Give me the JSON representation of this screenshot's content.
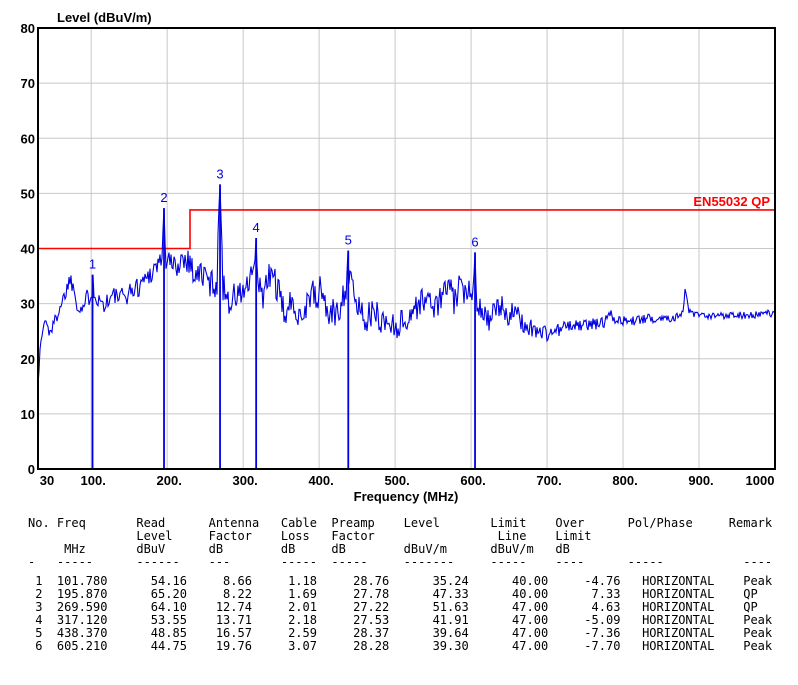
{
  "chart_data": {
    "type": "line",
    "title": "",
    "xlabel": "Frequency (MHz)",
    "ylabel": "Level (dBuV/m)",
    "xlim": [
      30,
      1000
    ],
    "ylim": [
      0,
      80
    ],
    "grid": true,
    "grid_color": "#c8c8c8",
    "trace_color": "#0000e0",
    "x_ticks": [
      {
        "value": 30,
        "label": "30"
      },
      {
        "value": 100,
        "label": "100."
      },
      {
        "value": 200,
        "label": "200."
      },
      {
        "value": 300,
        "label": "300."
      },
      {
        "value": 400,
        "label": "400."
      },
      {
        "value": 500,
        "label": "500."
      },
      {
        "value": 600,
        "label": "600."
      },
      {
        "value": 700,
        "label": "700."
      },
      {
        "value": 800,
        "label": "800."
      },
      {
        "value": 900,
        "label": "900."
      },
      {
        "value": 1000,
        "label": "1000"
      }
    ],
    "y_ticks": [
      {
        "value": 0,
        "label": "0"
      },
      {
        "value": 10,
        "label": "10"
      },
      {
        "value": 20,
        "label": "20"
      },
      {
        "value": 30,
        "label": "30"
      },
      {
        "value": 40,
        "label": "40"
      },
      {
        "value": 50,
        "label": "50"
      },
      {
        "value": 60,
        "label": "60"
      },
      {
        "value": 70,
        "label": "70"
      },
      {
        "value": 80,
        "label": "80"
      }
    ],
    "limit_line": {
      "label": "EN55032 QP",
      "color": "#ff0000",
      "points": [
        [
          30,
          40
        ],
        [
          230,
          40
        ],
        [
          230,
          47
        ],
        [
          1000,
          47
        ]
      ]
    },
    "markers": [
      {
        "no": "1",
        "freq_mhz": 101.78,
        "level_dbuvm": 35.24
      },
      {
        "no": "2",
        "freq_mhz": 195.87,
        "level_dbuvm": 47.33
      },
      {
        "no": "3",
        "freq_mhz": 269.59,
        "level_dbuvm": 51.63
      },
      {
        "no": "4",
        "freq_mhz": 317.12,
        "level_dbuvm": 41.91
      },
      {
        "no": "5",
        "freq_mhz": 438.37,
        "level_dbuvm": 39.64
      },
      {
        "no": "6",
        "freq_mhz": 605.21,
        "level_dbuvm": 39.3
      }
    ],
    "trace_envelope_points": [
      [
        30,
        16
      ],
      [
        32,
        20
      ],
      [
        34,
        23
      ],
      [
        37,
        26
      ],
      [
        40,
        27
      ],
      [
        44,
        25
      ],
      [
        48,
        25.5
      ],
      [
        52,
        26.5
      ],
      [
        56,
        28.5
      ],
      [
        60,
        30
      ],
      [
        64,
        31
      ],
      [
        68,
        33
      ],
      [
        72,
        34.5
      ],
      [
        76,
        33.5
      ],
      [
        80,
        31
      ],
      [
        85,
        29
      ],
      [
        90,
        29.5
      ],
      [
        95,
        31
      ],
      [
        100,
        32
      ],
      [
        104,
        32
      ],
      [
        108,
        31
      ],
      [
        115,
        30
      ],
      [
        122,
        30.5
      ],
      [
        130,
        31.5
      ],
      [
        138,
        31
      ],
      [
        146,
        31.5
      ],
      [
        154,
        32.5
      ],
      [
        162,
        33
      ],
      [
        170,
        34.5
      ],
      [
        178,
        35.5
      ],
      [
        186,
        37
      ],
      [
        192,
        38
      ],
      [
        198,
        37.5
      ],
      [
        204,
        37.5
      ],
      [
        210,
        36.5
      ],
      [
        216,
        37.5
      ],
      [
        222,
        38.5
      ],
      [
        228,
        38
      ],
      [
        234,
        36
      ],
      [
        240,
        35
      ],
      [
        246,
        35.5
      ],
      [
        252,
        34.5
      ],
      [
        258,
        33.5
      ],
      [
        264,
        34
      ],
      [
        270,
        34.5
      ],
      [
        276,
        32.5
      ],
      [
        282,
        30.5
      ],
      [
        288,
        31
      ],
      [
        295,
        31.5
      ],
      [
        302,
        32.5
      ],
      [
        309,
        33.5
      ],
      [
        314,
        35
      ],
      [
        318,
        35
      ],
      [
        323,
        31.5
      ],
      [
        328,
        32
      ],
      [
        334,
        34.5
      ],
      [
        340,
        35.5
      ],
      [
        346,
        32
      ],
      [
        352,
        28.5
      ],
      [
        358,
        29
      ],
      [
        364,
        29.5
      ],
      [
        370,
        29.5
      ],
      [
        376,
        28
      ],
      [
        382,
        29
      ],
      [
        390,
        33
      ],
      [
        396,
        29.5
      ],
      [
        402,
        33.5
      ],
      [
        408,
        29.5
      ],
      [
        414,
        28
      ],
      [
        420,
        28
      ],
      [
        426,
        29
      ],
      [
        430,
        31
      ],
      [
        436,
        33.5
      ],
      [
        441,
        34
      ],
      [
        446,
        31.5
      ],
      [
        452,
        29.5
      ],
      [
        458,
        28
      ],
      [
        464,
        27.5
      ],
      [
        470,
        28
      ],
      [
        476,
        28
      ],
      [
        482,
        27
      ],
      [
        488,
        26.5
      ],
      [
        494,
        26.5
      ],
      [
        500,
        26
      ],
      [
        508,
        26.5
      ],
      [
        516,
        27
      ],
      [
        524,
        29
      ],
      [
        532,
        30
      ],
      [
        540,
        31
      ],
      [
        548,
        30
      ],
      [
        556,
        29.5
      ],
      [
        564,
        32.5
      ],
      [
        572,
        33
      ],
      [
        578,
        30
      ],
      [
        584,
        33
      ],
      [
        592,
        31.5
      ],
      [
        598,
        33.5
      ],
      [
        604,
        32
      ],
      [
        610,
        30
      ],
      [
        616,
        28.5
      ],
      [
        624,
        27
      ],
      [
        632,
        28.5
      ],
      [
        640,
        29.5
      ],
      [
        648,
        28
      ],
      [
        656,
        28.5
      ],
      [
        664,
        27
      ],
      [
        672,
        26
      ],
      [
        680,
        25.5
      ],
      [
        690,
        25
      ],
      [
        700,
        24.5
      ],
      [
        710,
        25
      ],
      [
        720,
        25.5
      ],
      [
        730,
        26
      ],
      [
        745,
        26
      ],
      [
        760,
        26.3
      ],
      [
        775,
        26.5
      ],
      [
        782,
        29
      ],
      [
        790,
        27
      ],
      [
        805,
        26.8
      ],
      [
        820,
        27
      ],
      [
        835,
        27.3
      ],
      [
        850,
        27.4
      ],
      [
        865,
        27.5
      ],
      [
        878,
        28
      ],
      [
        882,
        33
      ],
      [
        886,
        28.5
      ],
      [
        895,
        28
      ],
      [
        910,
        27.5
      ],
      [
        925,
        27.8
      ],
      [
        940,
        28
      ],
      [
        955,
        28
      ],
      [
        970,
        27.8
      ],
      [
        985,
        28.2
      ],
      [
        1000,
        28
      ]
    ],
    "trace_noise_profile": [
      [
        30,
        1.2
      ],
      [
        95,
        1.8
      ],
      [
        150,
        1.8
      ],
      [
        200,
        2.2
      ],
      [
        250,
        2.8
      ],
      [
        330,
        3
      ],
      [
        430,
        2.8
      ],
      [
        520,
        2.5
      ],
      [
        620,
        2.2
      ],
      [
        660,
        2
      ],
      [
        700,
        1.5
      ],
      [
        740,
        1
      ],
      [
        770,
        1.1
      ],
      [
        800,
        0.9
      ],
      [
        860,
        0.8
      ],
      [
        900,
        0.7
      ],
      [
        1000,
        0.7
      ]
    ]
  },
  "table": {
    "header_line1": [
      "No.",
      "Freq",
      "Read",
      "Antenna",
      "Cable",
      "Preamp",
      "Level",
      "Limit",
      "Over",
      "Pol/Phase",
      "Remark"
    ],
    "header_line2": [
      "Level",
      "Factor",
      "Loss",
      "Factor",
      "Line",
      "Limit"
    ],
    "header_line3": [
      "MHz",
      "dBuV",
      "dB",
      "dB",
      "dB",
      "dBuV/m",
      "dBuV/m",
      "dB"
    ],
    "dash_line": [
      "-",
      "-----",
      "------",
      "---",
      "-----",
      "-----",
      "-------",
      "-----",
      "----",
      "-----",
      "----"
    ],
    "rows": [
      {
        "no": "1",
        "freq": "101.780",
        "read": "54.16",
        "antenna": "8.66",
        "cable": "1.18",
        "preamp": "28.76",
        "level": "35.24",
        "limit": "40.00",
        "over": "-4.76",
        "pol": "HORIZONTAL",
        "remark": "Peak"
      },
      {
        "no": "2",
        "freq": "195.870",
        "read": "65.20",
        "antenna": "8.22",
        "cable": "1.69",
        "preamp": "27.78",
        "level": "47.33",
        "limit": "40.00",
        "over": "7.33",
        "pol": "HORIZONTAL",
        "remark": "QP"
      },
      {
        "no": "3",
        "freq": "269.590",
        "read": "64.10",
        "antenna": "12.74",
        "cable": "2.01",
        "preamp": "27.22",
        "level": "51.63",
        "limit": "47.00",
        "over": "4.63",
        "pol": "HORIZONTAL",
        "remark": "QP"
      },
      {
        "no": "4",
        "freq": "317.120",
        "read": "53.55",
        "antenna": "13.71",
        "cable": "2.18",
        "preamp": "27.53",
        "level": "41.91",
        "limit": "47.00",
        "over": "-5.09",
        "pol": "HORIZONTAL",
        "remark": "Peak"
      },
      {
        "no": "5",
        "freq": "438.370",
        "read": "48.85",
        "antenna": "16.57",
        "cable": "2.59",
        "preamp": "28.37",
        "level": "39.64",
        "limit": "47.00",
        "over": "-7.36",
        "pol": "HORIZONTAL",
        "remark": "Peak"
      },
      {
        "no": "6",
        "freq": "605.210",
        "read": "44.75",
        "antenna": "19.76",
        "cable": "3.07",
        "preamp": "28.28",
        "level": "39.30",
        "limit": "47.00",
        "over": "-7.70",
        "pol": "HORIZONTAL",
        "remark": "Peak"
      }
    ]
  }
}
